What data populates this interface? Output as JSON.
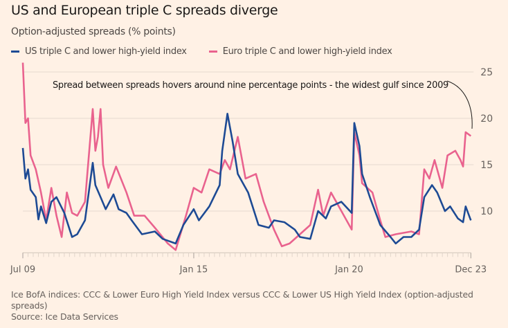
{
  "title": "US and European triple C spreads diverge",
  "subtitle": "Option-adjusted spreads (% points)",
  "footer": {
    "note": "Ice BofA indices: CCC & Lower Euro High Yield Index versus CCC & Lower US High Yield Index (option-adjusted spreads)",
    "source": "Source: Ice Data Services"
  },
  "chart_data": {
    "type": "line",
    "title": "US and European triple C spreads diverge",
    "subtitle": "Option-adjusted spreads (% points)",
    "ylim": [
      5.5,
      26
    ],
    "xlim": [
      "2009-07",
      "2023-12"
    ],
    "yticks": [
      10,
      15,
      20,
      25
    ],
    "ytick_labels": [
      "10",
      "15",
      "20",
      "25"
    ],
    "xticks": [
      "2009-07",
      "2015-01",
      "2020-01",
      "2023-12"
    ],
    "xtick_labels": [
      "Jul 09",
      "Jan 15",
      "Jan 20",
      "Dec 23"
    ],
    "grid": true,
    "y_axis_side": "right",
    "legend_placement": "top-left",
    "annotation": "Spread between spreads hovers around nine percentage points - the widest gulf since 2009",
    "series": [
      {
        "name": "US triple C and lower high-yield index",
        "color": "#1d4a94",
        "points": [
          [
            "2009-07",
            16.8
          ],
          [
            "2009-08",
            13.5
          ],
          [
            "2009-09",
            14.5
          ],
          [
            "2009-10",
            12.3
          ],
          [
            "2009-12",
            11.5
          ],
          [
            "2010-01",
            9.1
          ],
          [
            "2010-02",
            10.5
          ],
          [
            "2010-04",
            8.7
          ],
          [
            "2010-06",
            11
          ],
          [
            "2010-08",
            11.5
          ],
          [
            "2010-11",
            9.8
          ],
          [
            "2011-02",
            7.2
          ],
          [
            "2011-04",
            7.5
          ],
          [
            "2011-07",
            9
          ],
          [
            "2011-10",
            15.2
          ],
          [
            "2011-11",
            12.8
          ],
          [
            "2012-01",
            11.5
          ],
          [
            "2012-03",
            10.2
          ],
          [
            "2012-06",
            11.8
          ],
          [
            "2012-08",
            10.2
          ],
          [
            "2012-11",
            9.8
          ],
          [
            "2013-01",
            9
          ],
          [
            "2013-05",
            7.5
          ],
          [
            "2013-10",
            7.8
          ],
          [
            "2014-01",
            7
          ],
          [
            "2014-06",
            6.5
          ],
          [
            "2014-09",
            8.5
          ],
          [
            "2015-01",
            10.2
          ],
          [
            "2015-03",
            9
          ],
          [
            "2015-07",
            10.5
          ],
          [
            "2015-11",
            12.8
          ],
          [
            "2015-12",
            16.5
          ],
          [
            "2016-02",
            20.5
          ],
          [
            "2016-04",
            17.5
          ],
          [
            "2016-06",
            14
          ],
          [
            "2016-10",
            12
          ],
          [
            "2017-02",
            8.5
          ],
          [
            "2017-06",
            8.2
          ],
          [
            "2017-08",
            9
          ],
          [
            "2017-12",
            8.8
          ],
          [
            "2018-04",
            8
          ],
          [
            "2018-06",
            7.2
          ],
          [
            "2018-10",
            7
          ],
          [
            "2019-01",
            10
          ],
          [
            "2019-04",
            9.2
          ],
          [
            "2019-06",
            10.5
          ],
          [
            "2019-10",
            11
          ],
          [
            "2020-02",
            9.8
          ],
          [
            "2020-03",
            19.5
          ],
          [
            "2020-05",
            17
          ],
          [
            "2020-06",
            14
          ],
          [
            "2020-09",
            11.5
          ],
          [
            "2021-01",
            8.5
          ],
          [
            "2021-05",
            7.2
          ],
          [
            "2021-07",
            6.5
          ],
          [
            "2021-10",
            7.2
          ],
          [
            "2022-01",
            7.2
          ],
          [
            "2022-04",
            8
          ],
          [
            "2022-06",
            11.5
          ],
          [
            "2022-09",
            12.8
          ],
          [
            "2022-11",
            12
          ],
          [
            "2023-02",
            10
          ],
          [
            "2023-04",
            10.5
          ],
          [
            "2023-07",
            9.2
          ],
          [
            "2023-09",
            8.8
          ],
          [
            "2023-10",
            10.5
          ],
          [
            "2023-12",
            9
          ]
        ]
      },
      {
        "name": "Euro triple C and lower high-yield index",
        "color": "#e9628e",
        "points": [
          [
            "2009-07",
            26
          ],
          [
            "2009-08",
            19.5
          ],
          [
            "2009-09",
            20
          ],
          [
            "2009-10",
            16
          ],
          [
            "2009-12",
            14.5
          ],
          [
            "2010-02",
            12
          ],
          [
            "2010-04",
            9
          ],
          [
            "2010-06",
            12.5
          ],
          [
            "2010-08",
            9.5
          ],
          [
            "2010-10",
            7.2
          ],
          [
            "2010-12",
            12
          ],
          [
            "2011-02",
            9.8
          ],
          [
            "2011-04",
            9.5
          ],
          [
            "2011-07",
            11
          ],
          [
            "2011-10",
            21
          ],
          [
            "2011-11",
            16.5
          ],
          [
            "2011-12",
            18
          ],
          [
            "2012-01",
            21
          ],
          [
            "2012-02",
            15
          ],
          [
            "2012-04",
            12.5
          ],
          [
            "2012-07",
            14.8
          ],
          [
            "2012-11",
            12
          ],
          [
            "2013-02",
            9.5
          ],
          [
            "2013-06",
            9.5
          ],
          [
            "2013-10",
            8.2
          ],
          [
            "2014-03",
            6.5
          ],
          [
            "2014-06",
            5.8
          ],
          [
            "2014-10",
            9.5
          ],
          [
            "2015-01",
            12.5
          ],
          [
            "2015-04",
            12
          ],
          [
            "2015-07",
            14.5
          ],
          [
            "2015-11",
            14
          ],
          [
            "2016-01",
            15.5
          ],
          [
            "2016-03",
            14.5
          ],
          [
            "2016-06",
            18
          ],
          [
            "2016-09",
            13.5
          ],
          [
            "2017-01",
            14
          ],
          [
            "2017-04",
            11
          ],
          [
            "2017-08",
            8
          ],
          [
            "2017-11",
            6.2
          ],
          [
            "2018-02",
            6.5
          ],
          [
            "2018-06",
            7.5
          ],
          [
            "2018-10",
            8.5
          ],
          [
            "2019-01",
            12.3
          ],
          [
            "2019-03",
            9.5
          ],
          [
            "2019-06",
            12
          ],
          [
            "2019-09",
            10.5
          ],
          [
            "2020-02",
            8
          ],
          [
            "2020-03",
            18.5
          ],
          [
            "2020-05",
            16
          ],
          [
            "2020-06",
            13
          ],
          [
            "2020-10",
            12
          ],
          [
            "2021-01",
            9
          ],
          [
            "2021-03",
            7.2
          ],
          [
            "2021-07",
            7.5
          ],
          [
            "2022-01",
            7.8
          ],
          [
            "2022-04",
            7.5
          ],
          [
            "2022-06",
            14.5
          ],
          [
            "2022-08",
            13.5
          ],
          [
            "2022-10",
            15.5
          ],
          [
            "2023-01",
            12.5
          ],
          [
            "2023-03",
            16
          ],
          [
            "2023-06",
            16.5
          ],
          [
            "2023-08",
            15.5
          ],
          [
            "2023-09",
            14.8
          ],
          [
            "2023-10",
            18.5
          ],
          [
            "2023-12",
            18.1
          ]
        ]
      }
    ]
  }
}
